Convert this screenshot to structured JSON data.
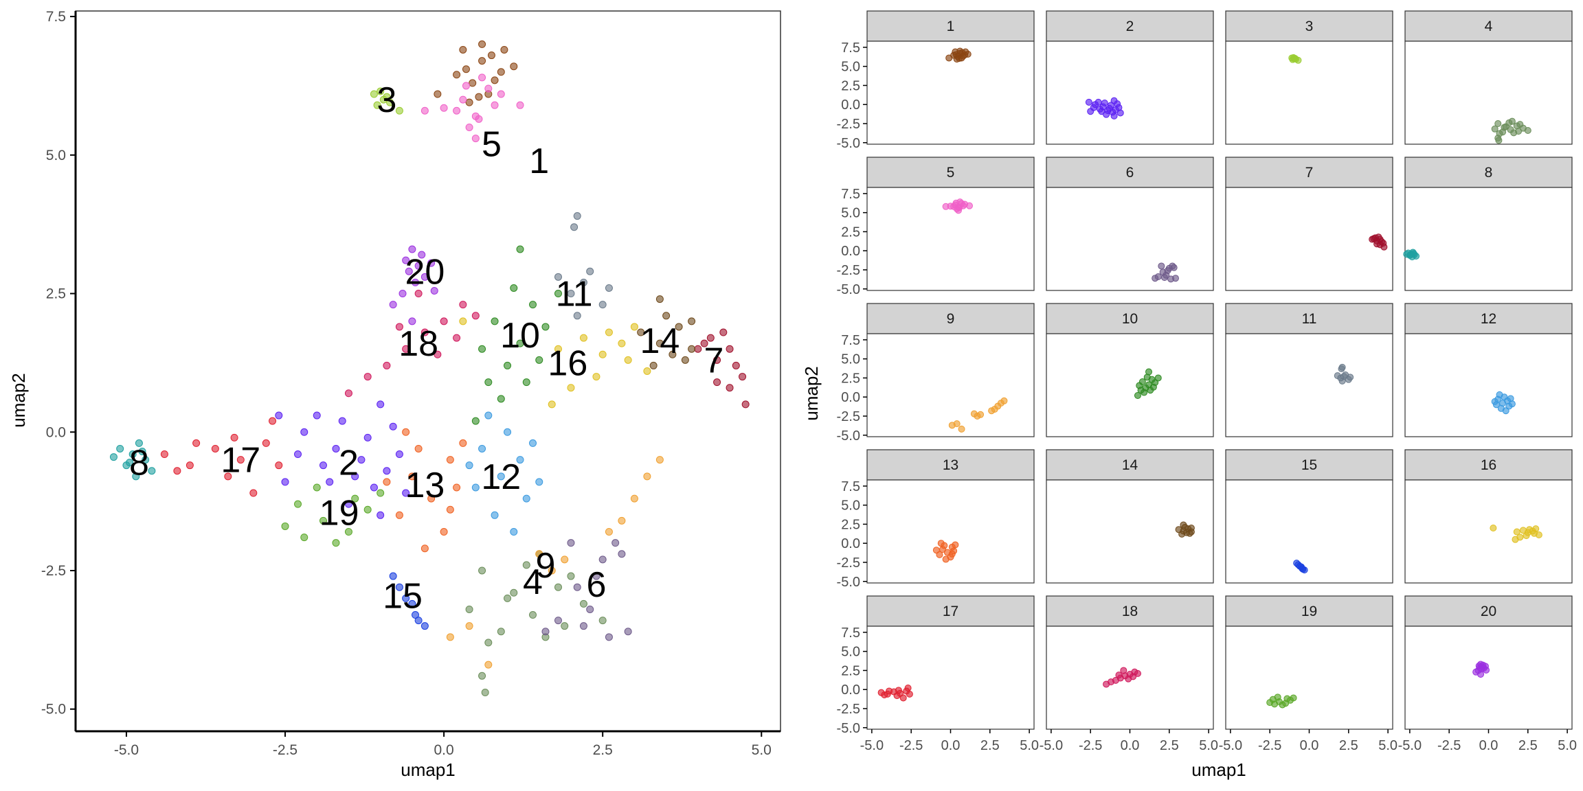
{
  "figure": {
    "main": {
      "xlabel": "umap1",
      "ylabel": "umap2",
      "xlim": [
        -5.8,
        5.3
      ],
      "ylim": [
        -5.4,
        7.6
      ],
      "xticks": [
        -5.0,
        -2.5,
        0.0,
        2.5,
        5.0
      ],
      "xtick_labels": [
        "-5.0",
        "-2.5",
        "0.0",
        "2.5",
        "5.0"
      ],
      "yticks": [
        -5.0,
        -2.5,
        0.0,
        2.5,
        5.0,
        7.5
      ],
      "ytick_labels": [
        "-5.0",
        "-2.5",
        "0.0",
        "2.5",
        "5.0",
        "7.5"
      ]
    },
    "facets": {
      "xlabel": "umap1",
      "ylabel": "umap2",
      "xlim": [
        -5.3,
        5.3
      ],
      "ylim": [
        -5.2,
        8.3
      ],
      "xticks": [
        -5.0,
        -2.5,
        0.0,
        2.5,
        5.0
      ],
      "xtick_labels": [
        "-5.0",
        "-2.5",
        "0.0",
        "2.5",
        "5.0"
      ],
      "yticks": [
        -5.0,
        -2.5,
        0.0,
        2.5,
        5.0,
        7.5
      ],
      "ytick_labels": [
        "-5.0",
        "-2.5",
        "0.0",
        "2.5",
        "5.0",
        "7.5"
      ]
    }
  },
  "chart_data": {
    "type": "scatter",
    "xlabel": "umap1",
    "ylabel": "umap2",
    "xlim": [
      -5.8,
      5.3
    ],
    "ylim": [
      -5.4,
      7.6
    ],
    "grid": false,
    "legend": "none",
    "series": [
      {
        "name": "1",
        "color": "#8B4513",
        "cluster_label_xy": [
          1.5,
          4.9
        ],
        "points": [
          [
            0.3,
            6.9
          ],
          [
            0.6,
            6.7
          ],
          [
            0.45,
            6.3
          ],
          [
            0.7,
            6.1
          ],
          [
            0.9,
            6.5
          ],
          [
            0.55,
            6.05
          ],
          [
            0.95,
            6.9
          ],
          [
            1.1,
            6.6
          ],
          [
            0.35,
            6.55
          ],
          [
            0.8,
            6.35
          ],
          [
            0.6,
            7.0
          ],
          [
            -0.1,
            6.1
          ],
          [
            0.4,
            5.95
          ],
          [
            0.75,
            6.8
          ],
          [
            0.2,
            6.45
          ]
        ]
      },
      {
        "name": "2",
        "color": "#5B21F2",
        "cluster_label_xy": [
          -1.5,
          -0.55
        ],
        "points": [
          [
            -2.3,
            -0.4
          ],
          [
            -1.8,
            -0.9
          ],
          [
            -1.2,
            -0.1
          ],
          [
            -1.5,
            -1.3
          ],
          [
            -0.9,
            -0.7
          ],
          [
            -2.0,
            0.3
          ],
          [
            -1.0,
            0.5
          ],
          [
            -1.7,
            -0.3
          ],
          [
            -0.6,
            -1.1
          ],
          [
            -2.5,
            -0.9
          ],
          [
            -1.3,
            -0.5
          ],
          [
            -0.8,
            0.1
          ],
          [
            -1.9,
            -0.6
          ],
          [
            -1.1,
            -1.0
          ],
          [
            -2.2,
            0.0
          ],
          [
            -1.6,
            0.2
          ],
          [
            -0.7,
            -0.4
          ],
          [
            -1.4,
            -0.8
          ],
          [
            -2.6,
            0.3
          ],
          [
            -1.0,
            -1.5
          ]
        ]
      },
      {
        "name": "3",
        "color": "#9ACD32",
        "cluster_label_xy": [
          -0.9,
          6.0
        ],
        "points": [
          [
            -1.1,
            6.1
          ],
          [
            -0.95,
            6.0
          ],
          [
            -1.0,
            6.15
          ],
          [
            -0.85,
            5.95
          ],
          [
            -1.05,
            5.9
          ],
          [
            -0.7,
            5.8
          ],
          [
            -0.9,
            6.05
          ]
        ]
      },
      {
        "name": "4",
        "color": "#6B8E5A",
        "cluster_label_xy": [
          1.4,
          -2.7
        ],
        "points": [
          [
            0.6,
            -2.5
          ],
          [
            1.0,
            -3.0
          ],
          [
            1.4,
            -3.3
          ],
          [
            1.8,
            -2.8
          ],
          [
            0.9,
            -3.6
          ],
          [
            1.3,
            -2.4
          ],
          [
            2.2,
            -3.1
          ],
          [
            0.4,
            -3.2
          ],
          [
            1.6,
            -3.7
          ],
          [
            2.0,
            -2.6
          ],
          [
            1.1,
            -2.9
          ],
          [
            2.5,
            -3.4
          ],
          [
            0.7,
            -3.8
          ],
          [
            1.5,
            -2.2
          ],
          [
            1.9,
            -3.5
          ],
          [
            0.6,
            -4.4
          ],
          [
            0.65,
            -4.7
          ]
        ]
      },
      {
        "name": "5",
        "color": "#F060C8",
        "cluster_label_xy": [
          0.75,
          5.2
        ],
        "points": [
          [
            0.3,
            6.0
          ],
          [
            0.5,
            5.7
          ],
          [
            0.7,
            6.2
          ],
          [
            0.4,
            5.5
          ],
          [
            0.8,
            5.9
          ],
          [
            0.6,
            6.4
          ],
          [
            0.2,
            5.8
          ],
          [
            0.9,
            6.1
          ],
          [
            0.5,
            5.3
          ],
          [
            0.35,
            6.25
          ],
          [
            1.2,
            5.9
          ],
          [
            0.0,
            5.85
          ],
          [
            -0.3,
            5.8
          ],
          [
            0.55,
            5.65
          ]
        ]
      },
      {
        "name": "6",
        "color": "#6E5A8A",
        "cluster_label_xy": [
          2.4,
          -2.75
        ],
        "points": [
          [
            2.0,
            -2.0
          ],
          [
            2.5,
            -2.3
          ],
          [
            2.8,
            -2.2
          ],
          [
            2.2,
            -3.5
          ],
          [
            2.6,
            -3.7
          ],
          [
            1.8,
            -3.4
          ],
          [
            2.4,
            -2.6
          ],
          [
            2.9,
            -3.6
          ],
          [
            1.6,
            -3.6
          ],
          [
            2.7,
            -2.0
          ],
          [
            2.1,
            -2.8
          ],
          [
            2.3,
            -3.2
          ]
        ]
      },
      {
        "name": "7",
        "color": "#A0102C",
        "cluster_label_xy": [
          4.25,
          1.3
        ],
        "points": [
          [
            4.2,
            1.7
          ],
          [
            4.5,
            1.5
          ],
          [
            4.3,
            1.3
          ],
          [
            4.6,
            1.2
          ],
          [
            4.1,
            1.6
          ],
          [
            4.4,
            1.8
          ],
          [
            4.7,
            1.0
          ],
          [
            4.3,
            0.9
          ],
          [
            4.0,
            1.5
          ],
          [
            4.5,
            0.8
          ],
          [
            4.75,
            0.5
          ]
        ]
      },
      {
        "name": "8",
        "color": "#20A0A0",
        "cluster_label_xy": [
          -4.8,
          -0.55
        ],
        "points": [
          [
            -5.1,
            -0.3
          ],
          [
            -4.9,
            -0.4
          ],
          [
            -4.7,
            -0.5
          ],
          [
            -5.0,
            -0.6
          ],
          [
            -4.8,
            -0.2
          ],
          [
            -4.6,
            -0.7
          ],
          [
            -4.85,
            -0.8
          ],
          [
            -5.2,
            -0.45
          ],
          [
            -4.75,
            -0.35
          ],
          [
            -4.95,
            -0.55
          ]
        ]
      },
      {
        "name": "9",
        "color": "#F0A030",
        "cluster_label_xy": [
          1.6,
          -2.4
        ],
        "points": [
          [
            1.5,
            -2.2
          ],
          [
            1.7,
            -2.5
          ],
          [
            2.8,
            -1.6
          ],
          [
            3.0,
            -1.2
          ],
          [
            3.2,
            -0.8
          ],
          [
            3.4,
            -0.5
          ],
          [
            2.6,
            -1.8
          ],
          [
            0.4,
            -3.5
          ],
          [
            0.1,
            -3.7
          ],
          [
            0.7,
            -4.2
          ],
          [
            1.9,
            -2.3
          ]
        ]
      },
      {
        "name": "10",
        "color": "#2E8B22",
        "cluster_label_xy": [
          1.2,
          1.75
        ],
        "points": [
          [
            0.8,
            2.0
          ],
          [
            1.2,
            1.6
          ],
          [
            1.0,
            1.2
          ],
          [
            1.4,
            2.3
          ],
          [
            0.6,
            1.5
          ],
          [
            1.6,
            1.9
          ],
          [
            0.9,
            0.6
          ],
          [
            1.3,
            0.9
          ],
          [
            1.8,
            2.5
          ],
          [
            0.5,
            0.2
          ],
          [
            1.1,
            2.6
          ],
          [
            1.5,
            1.3
          ],
          [
            0.7,
            0.9
          ],
          [
            1.2,
            3.3
          ]
        ]
      },
      {
        "name": "11",
        "color": "#6A7A8A",
        "cluster_label_xy": [
          2.05,
          2.5
        ],
        "points": [
          [
            1.8,
            2.8
          ],
          [
            2.0,
            2.5
          ],
          [
            2.2,
            2.7
          ],
          [
            2.5,
            2.3
          ],
          [
            2.3,
            2.9
          ],
          [
            2.1,
            2.1
          ],
          [
            2.6,
            2.6
          ],
          [
            2.1,
            3.9
          ],
          [
            2.05,
            3.7
          ]
        ]
      },
      {
        "name": "12",
        "color": "#3A9AE0",
        "cluster_label_xy": [
          0.9,
          -0.8
        ],
        "points": [
          [
            0.6,
            -0.3
          ],
          [
            0.9,
            -0.8
          ],
          [
            1.2,
            -0.5
          ],
          [
            0.5,
            -1.0
          ],
          [
            1.0,
            0.0
          ],
          [
            1.3,
            -1.2
          ],
          [
            0.8,
            -1.5
          ],
          [
            1.5,
            -0.9
          ],
          [
            0.4,
            -0.6
          ],
          [
            1.1,
            -1.8
          ],
          [
            0.7,
            0.3
          ],
          [
            1.4,
            -0.2
          ]
        ]
      },
      {
        "name": "13",
        "color": "#F06020",
        "cluster_label_xy": [
          -0.3,
          -0.95
        ],
        "points": [
          [
            -0.5,
            -0.8
          ],
          [
            -0.2,
            -1.2
          ],
          [
            0.1,
            -0.5
          ],
          [
            -0.7,
            -1.5
          ],
          [
            0.2,
            -1.0
          ],
          [
            -0.4,
            -0.3
          ],
          [
            0.0,
            -1.8
          ],
          [
            -0.9,
            -0.9
          ],
          [
            0.3,
            -0.2
          ],
          [
            -0.3,
            -2.1
          ],
          [
            -0.6,
            0.0
          ],
          [
            0.1,
            -1.4
          ]
        ]
      },
      {
        "name": "14",
        "color": "#6E4A1C",
        "cluster_label_xy": [
          3.4,
          1.65
        ],
        "points": [
          [
            3.1,
            1.8
          ],
          [
            3.4,
            1.6
          ],
          [
            3.7,
            1.9
          ],
          [
            3.9,
            1.5
          ],
          [
            3.5,
            2.1
          ],
          [
            3.3,
            1.2
          ],
          [
            3.8,
            1.3
          ],
          [
            3.4,
            2.4
          ],
          [
            3.6,
            1.4
          ],
          [
            3.9,
            2.0
          ]
        ]
      },
      {
        "name": "15",
        "color": "#1A40E0",
        "cluster_label_xy": [
          -0.65,
          -2.95
        ],
        "points": [
          [
            -0.7,
            -2.8
          ],
          [
            -0.5,
            -3.1
          ],
          [
            -0.4,
            -3.4
          ],
          [
            -0.6,
            -3.0
          ],
          [
            -0.3,
            -3.5
          ],
          [
            -0.8,
            -2.6
          ],
          [
            -0.45,
            -3.3
          ]
        ]
      },
      {
        "name": "16",
        "color": "#E0C020",
        "cluster_label_xy": [
          1.95,
          1.25
        ],
        "points": [
          [
            1.8,
            1.5
          ],
          [
            2.2,
            1.7
          ],
          [
            2.5,
            1.4
          ],
          [
            2.8,
            1.6
          ],
          [
            3.0,
            1.9
          ],
          [
            2.4,
            1.0
          ],
          [
            2.0,
            0.8
          ],
          [
            2.6,
            1.8
          ],
          [
            3.2,
            1.1
          ],
          [
            1.7,
            0.5
          ],
          [
            0.3,
            2.0
          ],
          [
            2.9,
            1.3
          ]
        ]
      },
      {
        "name": "17",
        "color": "#E02030",
        "cluster_label_xy": [
          -3.2,
          -0.5
        ],
        "points": [
          [
            -4.4,
            -0.4
          ],
          [
            -4.0,
            -0.6
          ],
          [
            -3.6,
            -0.3
          ],
          [
            -3.2,
            -0.5
          ],
          [
            -2.8,
            -0.2
          ],
          [
            -3.4,
            -0.8
          ],
          [
            -2.6,
            -0.6
          ],
          [
            -3.9,
            -0.2
          ],
          [
            -3.0,
            -1.1
          ],
          [
            -4.2,
            -0.7
          ],
          [
            -2.7,
            0.2
          ],
          [
            -3.3,
            -0.1
          ]
        ]
      },
      {
        "name": "18",
        "color": "#D0185C",
        "cluster_label_xy": [
          -0.4,
          1.6
        ],
        "points": [
          [
            -0.6,
            1.5
          ],
          [
            -0.3,
            1.8
          ],
          [
            0.0,
            2.0
          ],
          [
            -0.9,
            1.2
          ],
          [
            0.3,
            2.3
          ],
          [
            -1.2,
            1.0
          ],
          [
            -0.1,
            1.4
          ],
          [
            0.5,
            2.1
          ],
          [
            -0.7,
            1.9
          ],
          [
            -1.5,
            0.7
          ],
          [
            0.2,
            1.7
          ],
          [
            -0.4,
            2.5
          ]
        ]
      },
      {
        "name": "19",
        "color": "#5AA828",
        "cluster_label_xy": [
          -1.65,
          -1.45
        ],
        "points": [
          [
            -2.3,
            -1.3
          ],
          [
            -1.9,
            -1.6
          ],
          [
            -1.5,
            -1.8
          ],
          [
            -2.0,
            -1.0
          ],
          [
            -1.2,
            -1.4
          ],
          [
            -2.5,
            -1.7
          ],
          [
            -1.7,
            -2.0
          ],
          [
            -1.0,
            -1.1
          ],
          [
            -2.2,
            -1.9
          ],
          [
            -1.4,
            -1.2
          ]
        ]
      },
      {
        "name": "20",
        "color": "#9B30E0",
        "cluster_label_xy": [
          -0.3,
          2.9
        ],
        "points": [
          [
            -0.6,
            3.1
          ],
          [
            -0.4,
            3.0
          ],
          [
            -0.5,
            3.3
          ],
          [
            -0.3,
            2.8
          ],
          [
            -0.55,
            2.9
          ],
          [
            -0.35,
            3.2
          ],
          [
            -0.45,
            2.7
          ],
          [
            -0.2,
            3.05
          ],
          [
            -0.65,
            2.5
          ],
          [
            -0.8,
            2.3
          ],
          [
            -0.15,
            2.55
          ],
          [
            -0.5,
            2.0
          ]
        ]
      }
    ]
  },
  "colors": {
    "strip_fill": "#d3d3d3",
    "panel_border": "#333333",
    "axis": "#000000",
    "tick_text": "#4d4d4d"
  }
}
